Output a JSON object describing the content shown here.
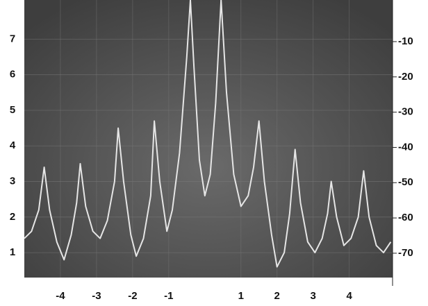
{
  "chart_data": {
    "type": "line",
    "x": [
      -5.0,
      -4.8,
      -4.6,
      -4.45,
      -4.3,
      -4.1,
      -3.9,
      -3.7,
      -3.55,
      -3.45,
      -3.3,
      -3.1,
      -2.9,
      -2.7,
      -2.5,
      -2.4,
      -2.25,
      -2.05,
      -1.9,
      -1.7,
      -1.5,
      -1.4,
      -1.25,
      -1.05,
      -0.9,
      -0.7,
      -0.5,
      -0.4,
      -0.3,
      -0.15,
      0.0,
      0.15,
      0.3,
      0.45,
      0.6,
      0.8,
      1.0,
      1.2,
      1.35,
      1.5,
      1.65,
      1.85,
      2.0,
      2.2,
      2.35,
      2.5,
      2.65,
      2.85,
      3.05,
      3.25,
      3.4,
      3.5,
      3.65,
      3.85,
      4.05,
      4.25,
      4.4,
      4.55,
      4.75,
      4.95,
      5.15
    ],
    "series": [
      {
        "color": "#e6e6e6",
        "values": [
          1.4,
          1.6,
          2.2,
          3.4,
          2.2,
          1.3,
          0.8,
          1.5,
          2.4,
          3.5,
          2.3,
          1.6,
          1.4,
          1.9,
          3.0,
          4.5,
          3.0,
          1.5,
          0.9,
          1.4,
          2.6,
          4.7,
          3.0,
          1.6,
          2.2,
          3.8,
          6.5,
          8.1,
          6.2,
          3.6,
          2.6,
          3.2,
          5.2,
          8.1,
          5.5,
          3.2,
          2.3,
          2.6,
          3.4,
          4.7,
          3.0,
          1.5,
          0.6,
          1.0,
          2.1,
          3.9,
          2.4,
          1.3,
          1.0,
          1.4,
          2.1,
          3.0,
          2.0,
          1.2,
          1.4,
          2.0,
          3.3,
          2.0,
          1.2,
          1.0,
          1.3
        ]
      }
    ],
    "xlim": [
      -5.0,
      5.2
    ],
    "xticks": [
      -4,
      -3,
      -2,
      -1,
      1,
      2,
      3,
      4
    ],
    "ylim": [
      0.3,
      8.1
    ],
    "yticks": [
      1,
      2,
      3,
      4,
      5,
      6,
      7
    ],
    "y2lim": [
      -76.9,
      1.8
    ],
    "y2ticks": [
      -10,
      -20,
      -30,
      -40,
      -50,
      -60,
      -70
    ],
    "grid": true
  }
}
